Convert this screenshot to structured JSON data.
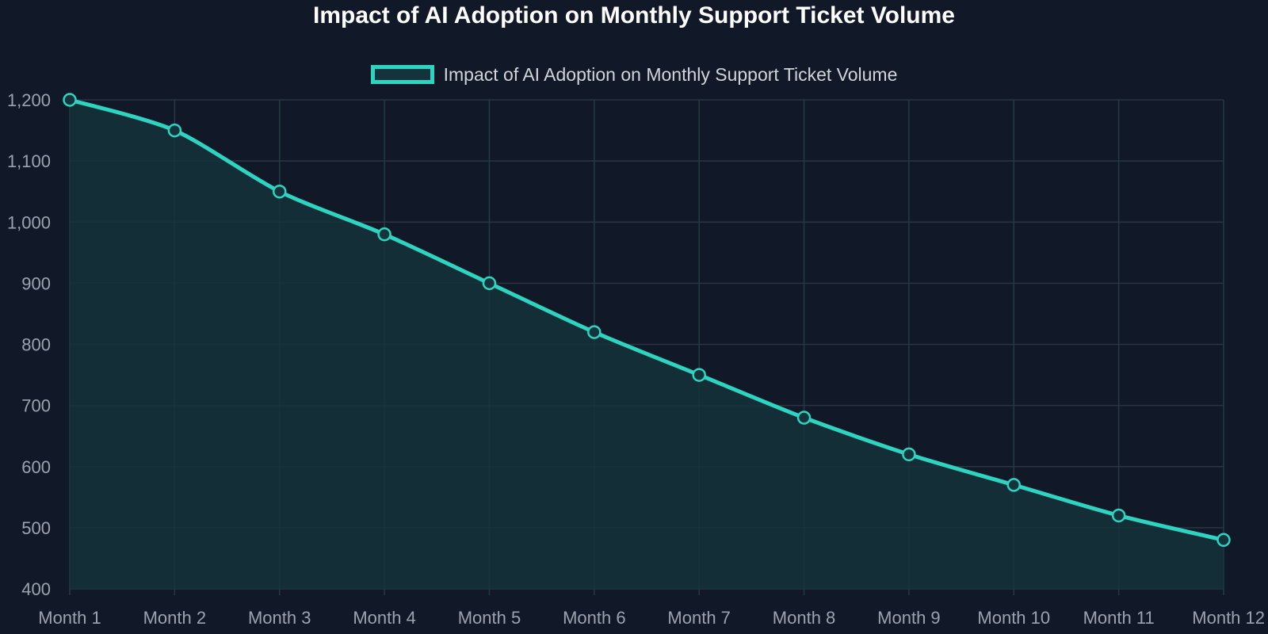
{
  "colors": {
    "background": "#111827",
    "line": "#2dd4bf",
    "area_fill": "#15333c",
    "grid": "#2a3442",
    "grid_vertical": "#233b41",
    "tick_text": "#9ca3af",
    "title_text": "#ffffff",
    "legend_text": "#d1d5db"
  },
  "chart_data": {
    "type": "area",
    "title": "Impact of AI Adoption on Monthly Support Ticket Volume",
    "categories": [
      "Month 1",
      "Month 2",
      "Month 3",
      "Month 4",
      "Month 5",
      "Month 6",
      "Month 7",
      "Month 8",
      "Month 9",
      "Month 10",
      "Month 11",
      "Month 12"
    ],
    "series": [
      {
        "name": "Impact of AI Adoption on Monthly Support Ticket Volume",
        "values": [
          1200,
          1150,
          1050,
          980,
          900,
          820,
          750,
          680,
          620,
          570,
          520,
          480
        ]
      }
    ],
    "xlabel": "",
    "ylabel": "",
    "ylim": [
      400,
      1200
    ],
    "yticks": [
      "1,200",
      "1,100",
      "1,000",
      "900",
      "800",
      "700",
      "600",
      "500",
      "400"
    ],
    "ytick_values": [
      1200,
      1100,
      1000,
      900,
      800,
      700,
      600,
      500,
      400
    ],
    "grid": true,
    "legend_position": "top-center",
    "smooth": true
  }
}
